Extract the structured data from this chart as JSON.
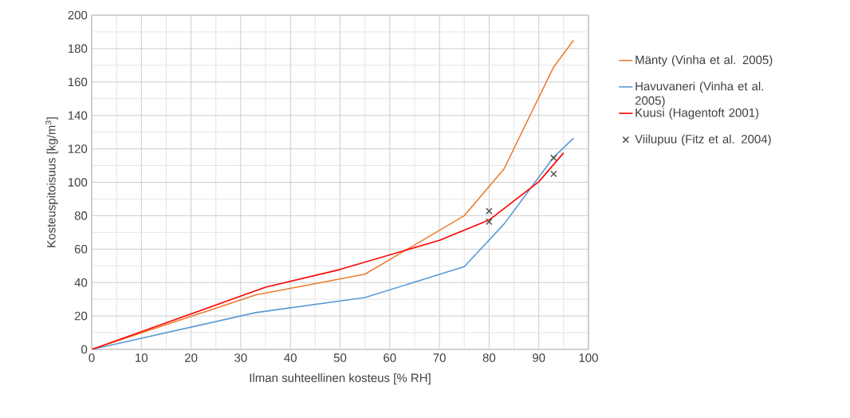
{
  "chart_data": {
    "type": "line",
    "xlabel": "Ilman suhteellinen  kosteus [% RH]",
    "ylabel": "Kosteuspitoisuus  [kg/m$^{3}$]",
    "xlim": [
      0,
      100
    ],
    "ylim": [
      0,
      200
    ],
    "xticks": [
      0,
      10,
      20,
      30,
      40,
      50,
      60,
      70,
      80,
      90,
      100
    ],
    "yticks": [
      0,
      20,
      40,
      60,
      80,
      100,
      120,
      140,
      160,
      180,
      200
    ],
    "grid": true,
    "legend": "right",
    "series": [
      {
        "name": "Mänty (Vinha et al. 2005)",
        "color": "#ed7d31",
        "x": [
          0,
          33,
          55,
          75,
          83,
          93,
          97
        ],
        "values": [
          0,
          32.6,
          45,
          80,
          108,
          169,
          185
        ]
      },
      {
        "name": "Havuvaneri (Vinha et al. 2005)",
        "color": "#5b9bd5",
        "x": [
          0,
          33,
          55,
          75,
          83,
          93,
          97
        ],
        "values": [
          0,
          22,
          31,
          49.5,
          75,
          115,
          126.4
        ]
      },
      {
        "name": "Kuusi (Hagentoft 2001)",
        "color": "#ff0000",
        "x": [
          0,
          35,
          50,
          70,
          80,
          90,
          95
        ],
        "values": [
          0,
          37.2,
          47.8,
          65.3,
          77.4,
          100.3,
          117.6
        ]
      },
      {
        "name": "Viilupuu (Fitz et al. 2004)",
        "type": "scatter",
        "marker": "cross",
        "color": "#595959",
        "x": [
          80,
          80,
          93,
          93
        ],
        "values": [
          82.8,
          76.4,
          114.6,
          105
        ]
      }
    ]
  }
}
